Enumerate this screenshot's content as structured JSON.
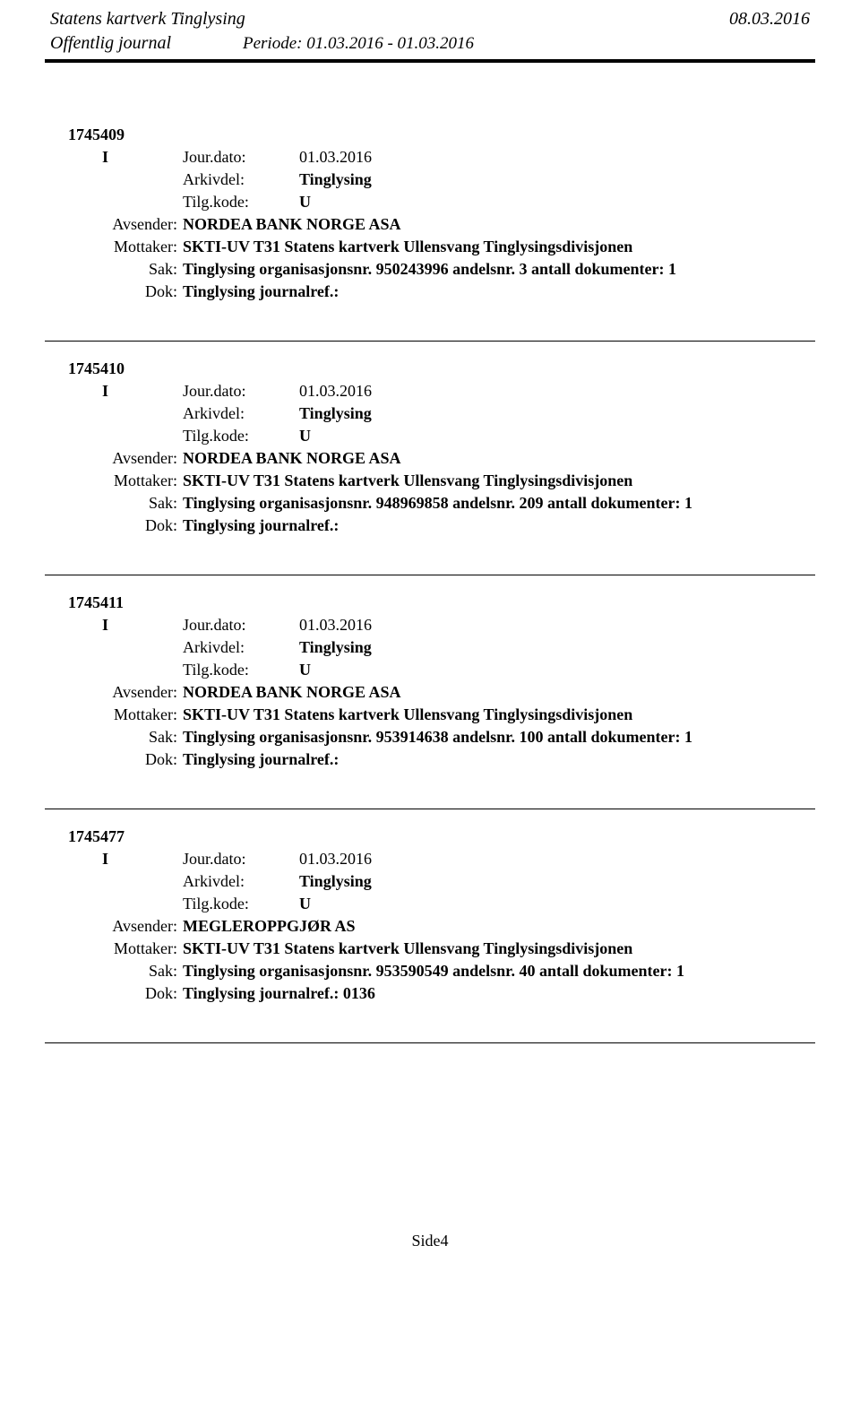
{
  "header": {
    "org": "Statens kartverk Tinglysing",
    "date": "08.03.2016",
    "journal": "Offentlig journal",
    "periode": "Periode: 01.03.2016 - 01.03.2016"
  },
  "labels": {
    "jour_dato": "Jour.dato:",
    "arkivdel": "Arkivdel:",
    "tilg_kode": "Tilg.kode:",
    "avsender": "Avsender:",
    "mottaker": "Mottaker:",
    "sak": "Sak:",
    "dok": "Dok:"
  },
  "entries": [
    {
      "id": "1745409",
      "type": "I",
      "jour_dato": "01.03.2016",
      "arkivdel": "Tinglysing",
      "tilg_kode": "U",
      "avsender": "NORDEA BANK NORGE ASA",
      "mottaker": "SKTI-UV T31 Statens kartverk Ullensvang Tinglysingsdivisjonen",
      "sak": "Tinglysing organisasjonsnr. 950243996 andelsnr. 3 antall dokumenter: 1",
      "dok": "Tinglysing journalref.:"
    },
    {
      "id": "1745410",
      "type": "I",
      "jour_dato": "01.03.2016",
      "arkivdel": "Tinglysing",
      "tilg_kode": "U",
      "avsender": "NORDEA BANK NORGE ASA",
      "mottaker": "SKTI-UV T31 Statens kartverk Ullensvang Tinglysingsdivisjonen",
      "sak": "Tinglysing organisasjonsnr. 948969858 andelsnr. 209 antall dokumenter: 1",
      "dok": "Tinglysing journalref.:"
    },
    {
      "id": "1745411",
      "type": "I",
      "jour_dato": "01.03.2016",
      "arkivdel": "Tinglysing",
      "tilg_kode": "U",
      "avsender": "NORDEA BANK NORGE ASA",
      "mottaker": "SKTI-UV T31 Statens kartverk Ullensvang Tinglysingsdivisjonen",
      "sak": "Tinglysing organisasjonsnr. 953914638 andelsnr. 100 antall dokumenter: 1",
      "dok": "Tinglysing journalref.:"
    },
    {
      "id": "1745477",
      "type": "I",
      "jour_dato": "01.03.2016",
      "arkivdel": "Tinglysing",
      "tilg_kode": "U",
      "avsender": "MEGLEROPPGJØR AS",
      "mottaker": "SKTI-UV T31 Statens kartverk Ullensvang Tinglysingsdivisjonen",
      "sak": "Tinglysing organisasjonsnr. 953590549 andelsnr. 40 antall dokumenter: 1",
      "dok": "Tinglysing journalref.: 0136"
    }
  ],
  "footer": {
    "page": "Side4"
  }
}
